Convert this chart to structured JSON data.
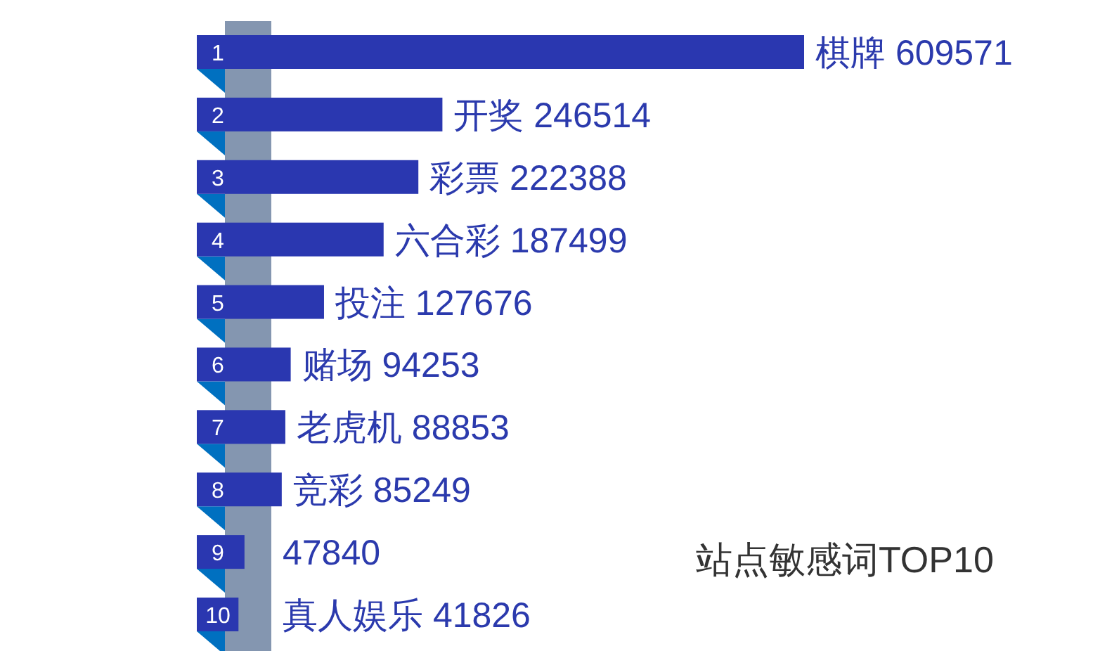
{
  "chart_data": {
    "type": "bar",
    "orientation": "horizontal",
    "title": "站点敏感词TOP10",
    "categories": [
      "1",
      "2",
      "3",
      "4",
      "5",
      "6",
      "7",
      "8",
      "9",
      "10"
    ],
    "values": [
      609571,
      246514,
      222388,
      187499,
      127676,
      94253,
      88853,
      85249,
      47840,
      41826
    ],
    "value_labels": [
      "棋牌 609571",
      "开奖 246514",
      "彩票 222388",
      "六合彩 187499",
      "投注 127676",
      "赌场 94253",
      "老虎机 88853",
      "竞彩 85249",
      "47840",
      "真人娱乐 41826"
    ],
    "color": "#2a37b0"
  }
}
